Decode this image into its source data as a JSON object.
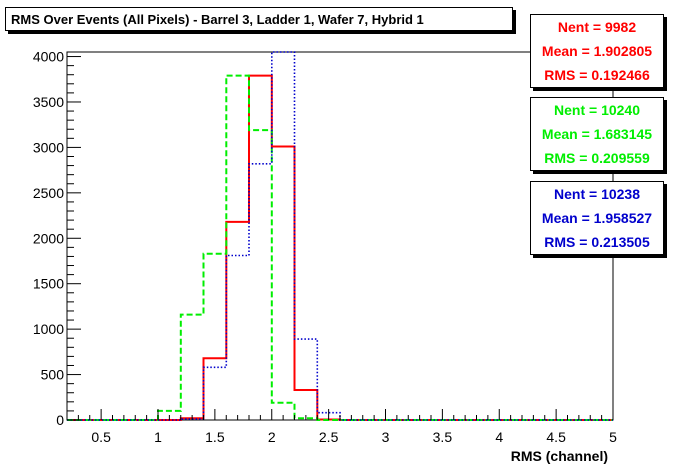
{
  "chart_data": {
    "type": "histogram",
    "title": "RMS Over Events (All Pixels) - Barrel 3, Ladder 1, Wafer 7, Hybrid 1",
    "xlabel": "RMS (channel)",
    "ylabel": "",
    "xlim": [
      0.2,
      5.0
    ],
    "ylim": [
      0,
      4050
    ],
    "bin_width": 0.2,
    "x_ticks": [
      "0.5",
      "1",
      "1.5",
      "2",
      "2.5",
      "3",
      "3.5",
      "4",
      "4.5",
      "5"
    ],
    "y_ticks": [
      "0",
      "500",
      "1000",
      "1500",
      "2000",
      "2500",
      "3000",
      "3500",
      "4000"
    ],
    "bin_edges": [
      0.2,
      0.4,
      0.6,
      0.8,
      1.0,
      1.2,
      1.4,
      1.6,
      1.8,
      2.0,
      2.2,
      2.4,
      2.6,
      2.8,
      3.0,
      3.2,
      3.4,
      3.6,
      3.8,
      4.0,
      4.2,
      4.4,
      4.6,
      4.8,
      5.0
    ],
    "series": [
      {
        "color": "#ff0000",
        "style": "solid",
        "values": [
          0,
          0,
          0,
          0,
          0,
          20,
          680,
          2180,
          3790,
          3010,
          330,
          5,
          0,
          0,
          0,
          0,
          0,
          0,
          0,
          0,
          0,
          0,
          0,
          0
        ],
        "stats": {
          "nent": "Nent = 9982",
          "mean": "Mean = 1.902805",
          "rms": "RMS = 0.192466"
        }
      },
      {
        "color": "#00ee00",
        "style": "dashed",
        "values": [
          0,
          0,
          0,
          0,
          100,
          1160,
          1830,
          3790,
          3190,
          190,
          20,
          0,
          0,
          0,
          0,
          0,
          0,
          0,
          0,
          0,
          0,
          0,
          0,
          0
        ],
        "stats": {
          "nent": "Nent = 10240",
          "mean": "Mean = 1.683145",
          "rms": "RMS = 0.209559"
        }
      },
      {
        "color": "#0000cc",
        "style": "dotted",
        "values": [
          0,
          0,
          0,
          0,
          0,
          10,
          580,
          1810,
          2820,
          4050,
          890,
          80,
          0,
          0,
          0,
          0,
          0,
          0,
          0,
          0,
          0,
          0,
          0,
          0
        ],
        "stats": {
          "nent": "Nent = 10238",
          "mean": "Mean = 1.958527",
          "rms": "RMS = 0.213505"
        }
      }
    ]
  }
}
